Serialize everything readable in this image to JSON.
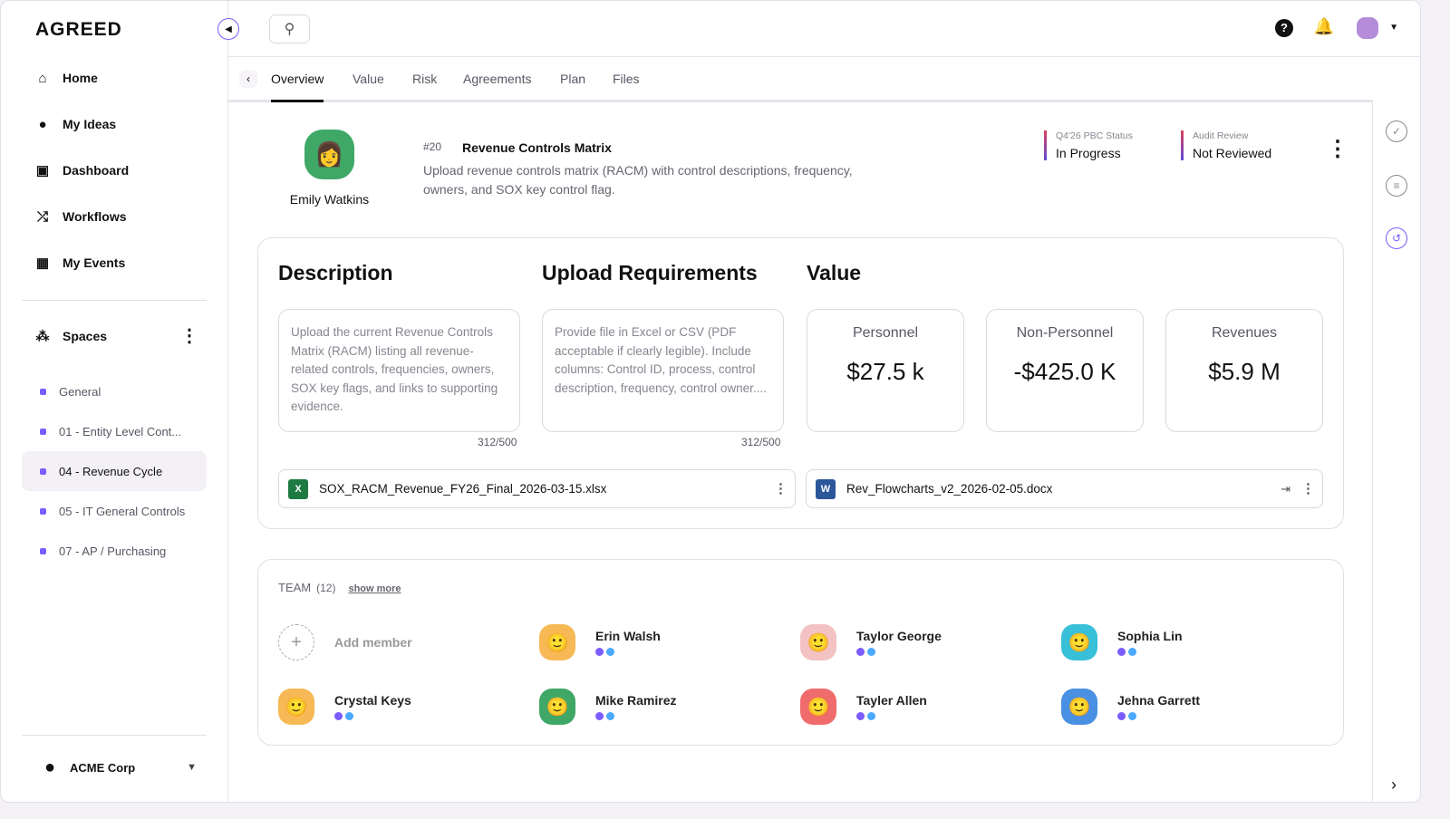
{
  "app": {
    "logo": "AGREED"
  },
  "sidebar": {
    "items": [
      {
        "label": "Home",
        "icon": "home-icon"
      },
      {
        "label": "My Ideas",
        "icon": "lightbulb-icon"
      },
      {
        "label": "Dashboard",
        "icon": "dashboard-icon"
      },
      {
        "label": "Workflows",
        "icon": "shuffle-icon"
      },
      {
        "label": "My Events",
        "icon": "calendar-icon"
      }
    ],
    "spaces_label": "Spaces",
    "spaces": [
      "General",
      "01 - Entity Level Cont...",
      "04 - Revenue Cycle",
      "05 - IT General Controls",
      "07 - AP / Purchasing"
    ],
    "active_space": "04 - Revenue Cycle",
    "org": "ACME Corp"
  },
  "tabs": [
    "Overview",
    "Value",
    "Risk",
    "Agreements",
    "Plan",
    "Files"
  ],
  "active_tab": "Overview",
  "item": {
    "owner": "Emily Watkins",
    "number": "#20",
    "title": "Revenue Controls Matrix",
    "summary": "Upload revenue controls matrix (RACM) with control descriptions, frequency, owners, and SOX key control flag.",
    "status1_label": "Q4'26 PBC Status",
    "status1_value": "In Progress",
    "status2_label": "Audit Review",
    "status2_value": "Not Reviewed"
  },
  "details": {
    "description_title": "Description",
    "description": "Upload the current Revenue Controls Matrix (RACM) listing all revenue-related controls, frequencies, owners, SOX key flags, and links to supporting evidence.",
    "description_count": "312/500",
    "upload_title": "Upload Requirements",
    "upload": "Provide file in Excel or CSV (PDF acceptable if clearly legible). Include columns: Control ID, process, control description, frequency, control owner....",
    "upload_count": "312/500",
    "value_title": "Value",
    "values": [
      {
        "label": "Personnel",
        "value": "$27.5 k"
      },
      {
        "label": "Non-Personnel",
        "value": "-$425.0 K"
      },
      {
        "label": "Revenues",
        "value": "$5.9 M"
      }
    ],
    "files": [
      {
        "name": "SOX_RACM_Revenue_FY26_Final_2026-03-15.xlsx",
        "type": "excel"
      },
      {
        "name": "Rev_Flowcharts_v2_2026-02-05.docx",
        "type": "word"
      }
    ]
  },
  "team": {
    "label": "TEAM",
    "count": "(12)",
    "show_more": "show more",
    "add_label": "Add member",
    "members": [
      "Erin Walsh",
      "Taylor George",
      "Sophia Lin",
      "Crystal Keys",
      "Mike Ramirez",
      "Tayler Allen",
      "Jehna Garrett"
    ]
  },
  "colors": {
    "accent": "#7b5cff",
    "dot_blue": "#4aa8ff"
  }
}
